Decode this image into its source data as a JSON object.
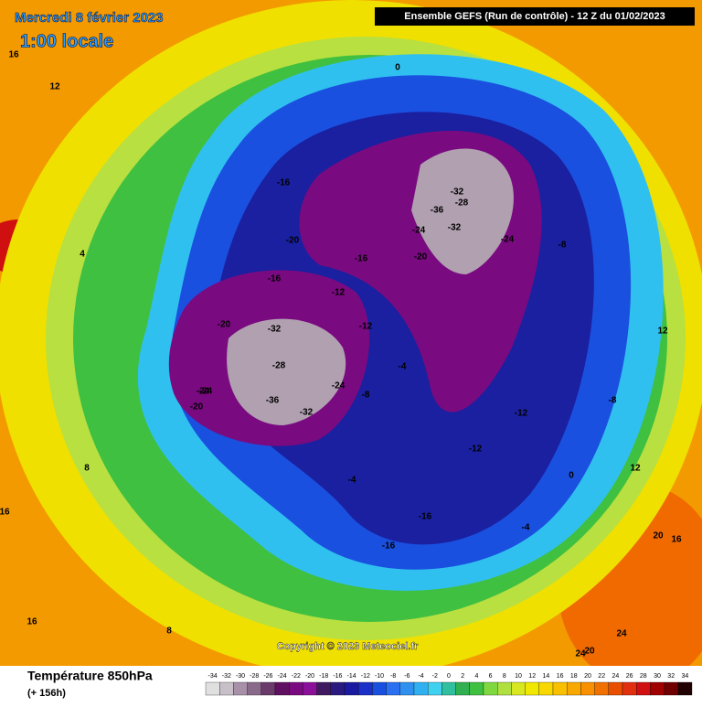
{
  "header": {
    "title": "Mercredi 8 février 2023",
    "subtitle": "1:00 locale",
    "run": "Ensemble GEFS  (Run de contrôle)  -  12 Z du 01/02/2023"
  },
  "map": {
    "copyright": "Copyright © 2023 Meteociel.fr",
    "labels": [
      -32,
      -28,
      -36,
      -24,
      -24,
      -32,
      -16,
      -20,
      -24,
      -20,
      -32,
      -36,
      -28,
      -32,
      -20,
      -24,
      -24,
      -20,
      -12,
      -16,
      -16,
      -12,
      -8,
      -4,
      -12,
      -4,
      -16,
      -16,
      -12,
      -8,
      -4,
      0,
      0,
      4,
      8,
      12,
      12,
      16,
      16,
      20,
      20,
      24,
      24,
      8,
      -8,
      12,
      16,
      16
    ]
  },
  "legend": {
    "title": "Température 850hPa",
    "lead": "(+ 156h)",
    "values": [
      -34,
      -32,
      -30,
      -28,
      -26,
      -24,
      -22,
      -20,
      -18,
      -16,
      -14,
      -12,
      -10,
      -8,
      -6,
      -4,
      -2,
      0,
      2,
      4,
      6,
      8,
      10,
      12,
      14,
      16,
      18,
      20,
      22,
      24,
      26,
      28,
      30,
      32,
      34
    ],
    "colors": [
      "#e0e0e0",
      "#c8c0c8",
      "#a890a8",
      "#8a6a8a",
      "#6a3a6a",
      "#601060",
      "#7a0a80",
      "#8a109a",
      "#401a60",
      "#2a1a80",
      "#1a1aa0",
      "#1a30c8",
      "#1a50e0",
      "#2a70f0",
      "#3090f0",
      "#30b0f0",
      "#40d0f0",
      "#30c0a0",
      "#30b050",
      "#40c040",
      "#80d840",
      "#b0e040",
      "#d8e820",
      "#f0e800",
      "#f8d800",
      "#f8c000",
      "#f8a800",
      "#f89000",
      "#f07000",
      "#e85000",
      "#e03010",
      "#d01010",
      "#a00000",
      "#700000",
      "#200000"
    ]
  }
}
